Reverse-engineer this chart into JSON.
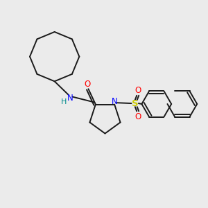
{
  "background_color": "#ebebeb",
  "line_color": "#1a1a1a",
  "N_color": "#0000ff",
  "H_color": "#008b8b",
  "O_color": "#ff0000",
  "S_color": "#cccc00",
  "figsize": [
    3.0,
    3.0
  ],
  "dpi": 100,
  "xlim": [
    0,
    10
  ],
  "ylim": [
    0,
    10
  ]
}
